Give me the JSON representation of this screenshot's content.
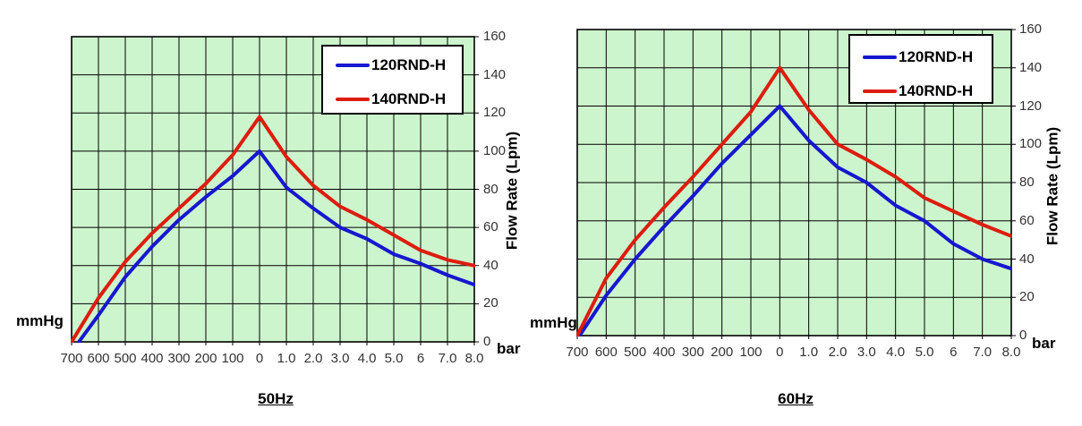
{
  "colors": {
    "plot_bg": "#cdf5cd",
    "grid": "#000000",
    "frame": "#000000",
    "series_blue": "#1717cf",
    "series_red": "#dc1d0f",
    "tick_text": "#333333",
    "label_text": "#000000",
    "legend_bg": "#ffffff"
  },
  "chart_data": [
    {
      "type": "line",
      "title": "50Hz",
      "x_axis": {
        "tick_labels": [
          "700",
          "600",
          "500",
          "400",
          "300",
          "200",
          "100",
          "0",
          "1.0",
          "2.0",
          "3.0",
          "4.0",
          "5.0",
          "6",
          "7.0",
          "8.0"
        ],
        "left_unit_label": "mmHg",
        "right_unit_label": "bar"
      },
      "y_axis": {
        "label": "Flow Rate (Lpm)",
        "min": 0,
        "max": 160,
        "tick_labels": [
          "160",
          "140",
          "120",
          "100",
          "80",
          "60",
          "40",
          "20",
          "0"
        ]
      },
      "grid": true,
      "legend": {
        "position": "top-right",
        "entries": [
          "120RND-H",
          "140RND-H"
        ]
      },
      "series": [
        {
          "name": "120RND-H",
          "color": "#1717cf",
          "values_by_tick": [
            0,
            14,
            34,
            50,
            64,
            76,
            87,
            100,
            81,
            70,
            60,
            54,
            46,
            41,
            35,
            30
          ],
          "zero_crossing_tick_offset": 0.27
        },
        {
          "name": "140RND-H",
          "color": "#dc1d0f",
          "values_by_tick": [
            0,
            23,
            42,
            57,
            70,
            83,
            98,
            118,
            97,
            82,
            71,
            64,
            56,
            48,
            43,
            40
          ]
        }
      ]
    },
    {
      "type": "line",
      "title": "60Hz",
      "x_axis": {
        "tick_labels": [
          "700",
          "600",
          "500",
          "400",
          "300",
          "200",
          "100",
          "0",
          "1.0",
          "2.0",
          "3.0",
          "4.0",
          "5.0",
          "6",
          "7.0",
          "8.0"
        ],
        "left_unit_label": "mmHg",
        "right_unit_label": "bar"
      },
      "y_axis": {
        "label": "Flow Rate (Lpm)",
        "min": 0,
        "max": 160,
        "tick_labels": [
          "160",
          "140",
          "120",
          "100",
          "80",
          "60",
          "40",
          "20",
          "0"
        ]
      },
      "grid": true,
      "legend": {
        "position": "top-right",
        "entries": [
          "120RND-H",
          "140RND-H"
        ]
      },
      "series": [
        {
          "name": "120RND-H",
          "color": "#1717cf",
          "values_by_tick": [
            0,
            21,
            40,
            57,
            73,
            90,
            105,
            120,
            102,
            88,
            80,
            68,
            60,
            48,
            40,
            35
          ],
          "zero_crossing_tick_offset": 0.08
        },
        {
          "name": "140RND-H",
          "color": "#dc1d0f",
          "values_by_tick": [
            0,
            30,
            50,
            67,
            83,
            100,
            117,
            140,
            118,
            100,
            92,
            83,
            72,
            65,
            58,
            52
          ]
        }
      ]
    }
  ]
}
